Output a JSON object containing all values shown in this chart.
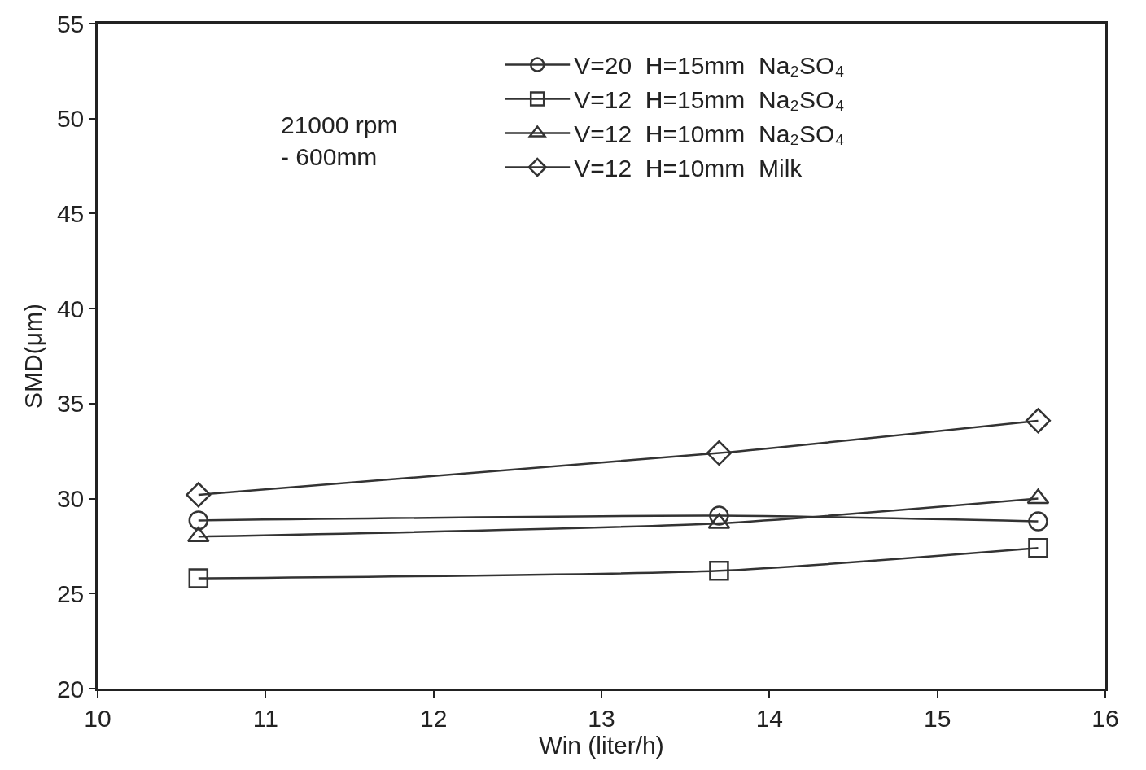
{
  "chart_data": {
    "type": "line",
    "xlabel": "Win (liter/h)",
    "ylabel": "SMD(μm)",
    "x": [
      10.6,
      13.7,
      15.6
    ],
    "series": [
      {
        "name": "V=20  H=15mm  Na₂SO₄",
        "color": "#333333",
        "marker": "circle",
        "values": [
          28.85,
          29.1,
          28.8
        ]
      },
      {
        "name": "V=12  H=15mm  Na₂SO₄",
        "color": "#333333",
        "marker": "square",
        "values": [
          25.8,
          26.2,
          27.4
        ]
      },
      {
        "name": "V=12  H=10mm  Na₂SO₄",
        "color": "#333333",
        "marker": "triangle",
        "values": [
          28.0,
          28.7,
          30.0
        ]
      },
      {
        "name": "V=12  H=10mm  Milk",
        "color": "#333333",
        "marker": "diamond",
        "values": [
          30.2,
          32.4,
          34.1
        ]
      }
    ],
    "annotations": [
      "21000 rpm\n- 600mm"
    ],
    "xlim": [
      10,
      16
    ],
    "xticks": [
      10,
      11,
      12,
      13,
      14,
      15,
      16
    ],
    "ylim": [
      20,
      55
    ],
    "yticks": [
      20,
      25,
      30,
      35,
      40,
      45,
      50,
      55
    ],
    "grid": false,
    "legend": "top right",
    "line_style": "solid"
  }
}
